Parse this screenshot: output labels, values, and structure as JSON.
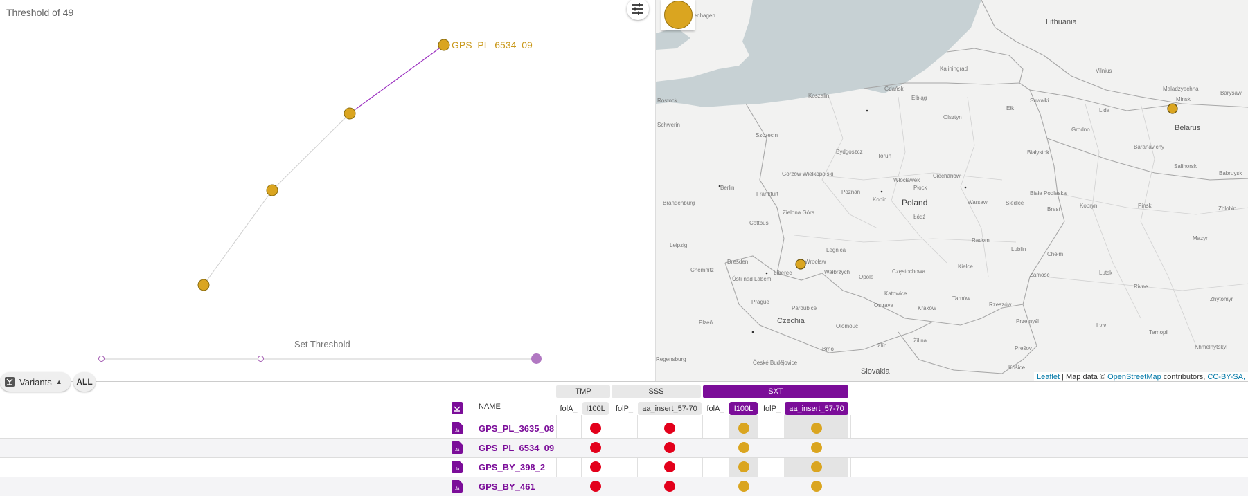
{
  "tree": {
    "threshold_title": "Threshold of 49",
    "highlight_label": "GPS_PL_6534_09",
    "set_threshold_label": "Set Threshold"
  },
  "map": {
    "country_labels": [
      "Lithuania",
      "Belarus",
      "Poland",
      "Czechia",
      "Slovakia"
    ],
    "city_labels": [
      "Copenhagen",
      "Kaliningrad",
      "Gdańsk",
      "Elbląg",
      "Koszalin",
      "Szczecin",
      "Schwerin",
      "Rostock",
      "Bydgoszcz",
      "Toruń",
      "Olsztyn",
      "Ełk",
      "Suwałki",
      "Białystok",
      "Grodno",
      "Lida",
      "Vilnius",
      "Maladzyechna",
      "Minsk",
      "Barysaw",
      "Brest",
      "Kobryn",
      "Pinsk",
      "Baranavichy",
      "Salihorsk",
      "Babruysk",
      "Zhlobin",
      "Mazyr",
      "Berlin",
      "Brandenburg",
      "Frankfurt",
      "Gorzów Wielkopolski",
      "Poznań",
      "Konin",
      "Włocławek",
      "Płock",
      "Ciechanów",
      "Warsaw",
      "Siedlce",
      "Biała Podlaska",
      "Łódź",
      "Radom",
      "Lublin",
      "Chełm",
      "Kielce",
      "Zamość",
      "Częstochowa",
      "Katowice",
      "Kraków",
      "Tarnów",
      "Rzeszów",
      "Przemyśl",
      "Lutsk",
      "Rivne",
      "Lviv",
      "Ternopil",
      "Khmelnytskyi",
      "Zhytomyr",
      "Dresden",
      "Chemnitz",
      "Leipzig",
      "Cottbus",
      "Zielona Góra",
      "Legnica",
      "Wrocław",
      "Wałbrzych",
      "Opole",
      "Liberec",
      "Ústí nad Labem",
      "Prague",
      "Plzeň",
      "Pardubice",
      "Olomouc",
      "Ostrava",
      "Žilina",
      "Brno",
      "Zlín",
      "Košice",
      "Prešov",
      "Regensburg",
      "České Budějovice"
    ],
    "legend_icon": "circle-legend-icon",
    "attribution": {
      "leaflet": "Leaflet",
      "map_data": " | Map data © ",
      "osm": "OpenStreetMap",
      "contributors": " contributors, ",
      "license": "CC-BY-SA,"
    }
  },
  "toolbar": {
    "variants_label": "Variants",
    "all_label": "ALL",
    "variants_icon": "variants-icon",
    "settings_icon": "sliders-icon"
  },
  "table": {
    "name_header": "NAME",
    "groups": [
      {
        "label": "TMP",
        "style": "gray"
      },
      {
        "label": "SSS",
        "style": "gray"
      },
      {
        "label": "SXT",
        "style": "purple"
      }
    ],
    "columns": [
      {
        "label": "folA_",
        "group": "TMP",
        "pill": false
      },
      {
        "label": "I100L",
        "group": "TMP",
        "pill": true
      },
      {
        "label": "folP_",
        "group": "SSS",
        "pill": false
      },
      {
        "label": "aa_insert_57-70",
        "group": "SSS",
        "pill": true
      },
      {
        "label": "folA_",
        "group": "SXT",
        "pill": false
      },
      {
        "label": "I100L",
        "group": "SXT",
        "pill": true
      },
      {
        "label": "folP_",
        "group": "SXT",
        "pill": false
      },
      {
        "label": "aa_insert_57-70",
        "group": "SXT",
        "pill": true
      }
    ],
    "rows": [
      {
        "name": "GPS_PL_3635_08",
        "I100L_TMP": "red",
        "aa_insert_SSS": "red",
        "I100L_SXT": "gold",
        "aa_insert_SXT": "gold"
      },
      {
        "name": "GPS_PL_6534_09",
        "I100L_TMP": "red",
        "aa_insert_SSS": "red",
        "I100L_SXT": "gold",
        "aa_insert_SXT": "gold"
      },
      {
        "name": "GPS_BY_398_2",
        "I100L_TMP": "red",
        "aa_insert_SSS": "red",
        "I100L_SXT": "gold",
        "aa_insert_SXT": "gold"
      },
      {
        "name": "GPS_BY_461",
        "I100L_TMP": "red",
        "aa_insert_SSS": "red",
        "I100L_SXT": "gold",
        "aa_insert_SXT": "gold"
      }
    ]
  },
  "colors": {
    "accent_purple": "#7b0d99",
    "gold": "#daa520",
    "red": "#e3001b",
    "tree_edge_highlight": "#9b30c0"
  }
}
